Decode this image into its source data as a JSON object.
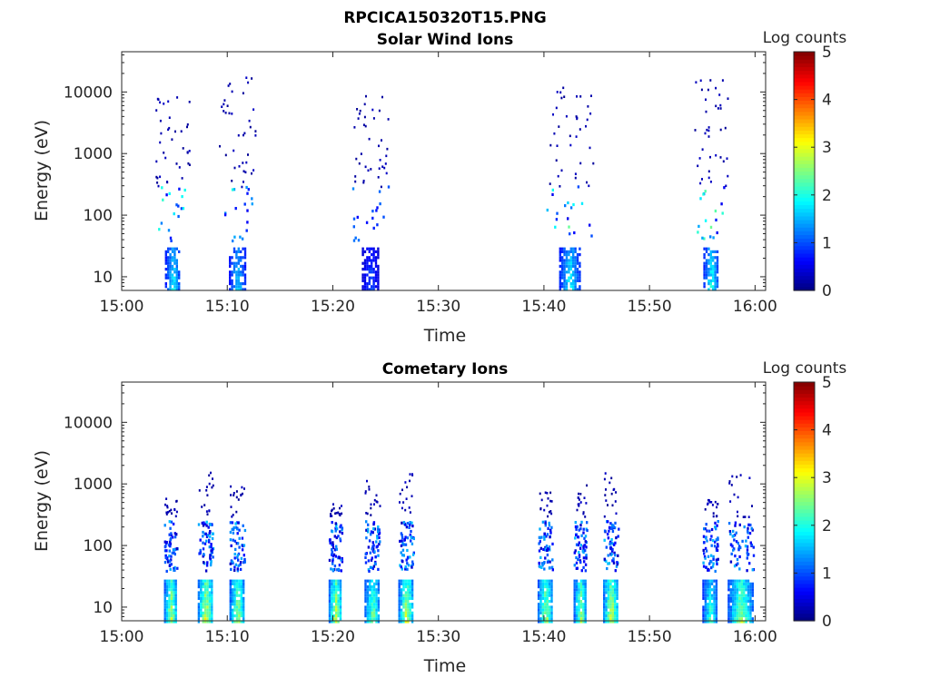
{
  "figure": {
    "title": "RPCICA150320T15.PNG"
  },
  "chart_data": [
    {
      "type": "heatmap",
      "title": "Solar Wind Ions",
      "xlabel": "Time",
      "ylabel": "Energy (eV)",
      "x_range": [
        "15:00",
        "16:01"
      ],
      "y_range": [
        6,
        45000
      ],
      "y_scale": "log",
      "x_ticks": [
        "15:00",
        "15:10",
        "15:20",
        "15:30",
        "15:40",
        "15:50",
        "16:00"
      ],
      "y_ticks": [
        "10",
        "100",
        "1000",
        "10000"
      ],
      "colorbar": {
        "label": "Log counts",
        "range": [
          0,
          5
        ],
        "ticks": [
          "0",
          "1",
          "2",
          "3",
          "4",
          "5"
        ],
        "colormap": "jet"
      },
      "grid": false,
      "bursts": [
        {
          "start_min": 3.2,
          "end_min": 6.4,
          "max_log_counts": 2.2,
          "high_energy_max_ev": 9000
        },
        {
          "start_min": 9.2,
          "end_min": 12.6,
          "max_log_counts": 2.0,
          "high_energy_max_ev": 20000
        },
        {
          "start_min": 21.8,
          "end_min": 25.2,
          "max_log_counts": 1.2,
          "high_energy_max_ev": 9000
        },
        {
          "start_min": 40.2,
          "end_min": 44.6,
          "max_log_counts": 2.3,
          "high_energy_max_ev": 13000
        },
        {
          "start_min": 54.2,
          "end_min": 57.4,
          "max_log_counts": 2.4,
          "high_energy_max_ev": 20000
        }
      ]
    },
    {
      "type": "heatmap",
      "title": "Cometary Ions",
      "xlabel": "Time",
      "ylabel": "Energy (eV)",
      "x_range": [
        "15:00",
        "16:01"
      ],
      "y_range": [
        6,
        45000
      ],
      "y_scale": "log",
      "x_ticks": [
        "15:00",
        "15:10",
        "15:20",
        "15:30",
        "15:40",
        "15:50",
        "16:00"
      ],
      "y_ticks": [
        "10",
        "100",
        "1000",
        "10000"
      ],
      "colorbar": {
        "label": "Log counts",
        "range": [
          0,
          5
        ],
        "ticks": [
          "0",
          "1",
          "2",
          "3",
          "4",
          "5"
        ],
        "colormap": "jet"
      },
      "grid": false,
      "bursts": [
        {
          "start_min": 4.0,
          "end_min": 5.2,
          "max_log_counts": 3.3,
          "high_energy_max_ev": 600
        },
        {
          "start_min": 7.2,
          "end_min": 8.6,
          "max_log_counts": 3.6,
          "high_energy_max_ev": 1600
        },
        {
          "start_min": 10.2,
          "end_min": 11.6,
          "max_log_counts": 3.2,
          "high_energy_max_ev": 1000
        },
        {
          "start_min": 19.6,
          "end_min": 20.8,
          "max_log_counts": 3.4,
          "high_energy_max_ev": 500
        },
        {
          "start_min": 23.0,
          "end_min": 24.4,
          "max_log_counts": 3.0,
          "high_energy_max_ev": 1500
        },
        {
          "start_min": 26.2,
          "end_min": 27.6,
          "max_log_counts": 3.4,
          "high_energy_max_ev": 1700
        },
        {
          "start_min": 39.4,
          "end_min": 40.8,
          "max_log_counts": 3.2,
          "high_energy_max_ev": 800
        },
        {
          "start_min": 42.8,
          "end_min": 44.0,
          "max_log_counts": 3.1,
          "high_energy_max_ev": 1000
        },
        {
          "start_min": 45.6,
          "end_min": 47.0,
          "max_log_counts": 3.5,
          "high_energy_max_ev": 1600
        },
        {
          "start_min": 55.0,
          "end_min": 56.4,
          "max_log_counts": 2.6,
          "high_energy_max_ev": 600
        },
        {
          "start_min": 57.4,
          "end_min": 59.8,
          "max_log_counts": 3.1,
          "high_energy_max_ev": 1500
        }
      ]
    }
  ]
}
